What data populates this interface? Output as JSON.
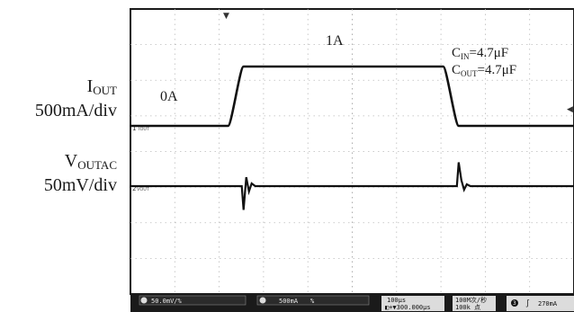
{
  "labels": {
    "iout_symbol": "I",
    "iout_sub": "OUT",
    "iout_scale": "500mA/div",
    "vout_symbol": "V",
    "vout_sub": "OUTAC",
    "vout_scale": "50mV/div"
  },
  "annotations": {
    "low_current": "0A",
    "high_current": "1A",
    "cin_symbol": "C",
    "cin_sub": "IN",
    "cin_value": "=4.7μF",
    "cout_symbol": "C",
    "cout_sub": "OUT",
    "cout_value": "=4.7μF"
  },
  "scope": {
    "ch_marker_1": "1",
    "ch_marker_2": "2",
    "ch_label_1": "VOUT",
    "ch_label_2": "IOUT",
    "status": {
      "ch1_scale": "50.0mV/%",
      "ch2_scale": "500mA",
      "ch2_extra": "%",
      "timebase": "100μs",
      "time_offset": "◧+▼300.000μs",
      "sample_rate": "100M次/秒",
      "record_length": "100k 点",
      "trigger_channel": "3",
      "trigger_level": "270mA"
    }
  },
  "chart_data": {
    "type": "line",
    "title": "",
    "xlabel": "",
    "ylabel": "",
    "x_divisions": 10,
    "y_divisions": 8,
    "grid": true,
    "series": [
      {
        "name": "IOUT",
        "scale": "500mA/div",
        "x": [
          0,
          2.2,
          2.55,
          7.05,
          7.4,
          10
        ],
        "y": [
          0,
          0,
          1,
          1,
          0,
          0
        ],
        "y_unit": "A"
      },
      {
        "name": "VOUTAC",
        "scale": "50mV/div",
        "baseline": 0,
        "transients": [
          {
            "x": 2.55,
            "spike": -40,
            "ring": 15
          },
          {
            "x": 7.4,
            "spike": 40,
            "ring": 10
          }
        ],
        "y_unit": "mV"
      }
    ]
  }
}
